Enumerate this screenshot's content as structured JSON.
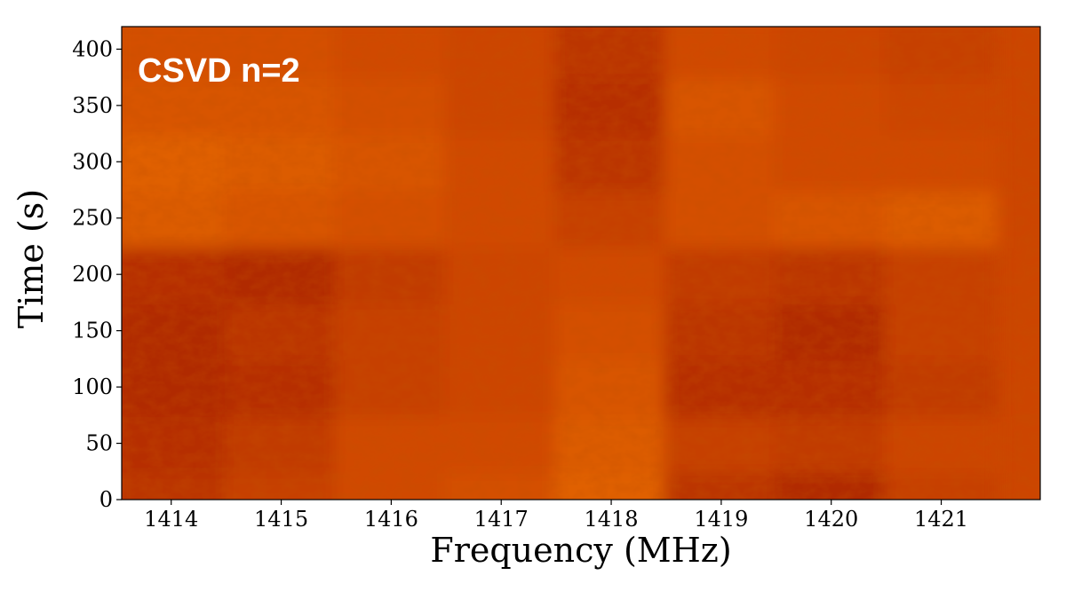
{
  "chart_data": {
    "type": "heatmap",
    "annotation": "CSVD n=2",
    "xlabel": "Frequency (MHz)",
    "ylabel": "Time (s)",
    "xlim": [
      1413.55,
      1421.9
    ],
    "ylim": [
      0,
      420
    ],
    "x_ticks": [
      1414,
      1415,
      1416,
      1417,
      1418,
      1419,
      1420,
      1421
    ],
    "y_ticks": [
      0,
      50,
      100,
      150,
      200,
      250,
      300,
      350,
      400
    ],
    "colormap": [
      "#8f0f00",
      "#b02a00",
      "#cc4500",
      "#e06000",
      "#f07400"
    ],
    "grid": false,
    "legend": "none",
    "rows_time_axis": [
      0,
      50,
      100,
      150,
      200,
      250,
      300,
      350,
      400
    ],
    "cols_freq_axis": [
      1414,
      1415,
      1416,
      1417,
      1418,
      1419,
      1420,
      1421
    ],
    "intensity": [
      [
        0.35,
        0.45,
        0.55,
        0.6,
        0.75,
        0.35,
        0.25,
        0.45
      ],
      [
        0.3,
        0.4,
        0.55,
        0.55,
        0.7,
        0.45,
        0.4,
        0.5
      ],
      [
        0.25,
        0.3,
        0.45,
        0.5,
        0.65,
        0.3,
        0.3,
        0.4
      ],
      [
        0.25,
        0.35,
        0.45,
        0.5,
        0.6,
        0.35,
        0.25,
        0.45
      ],
      [
        0.3,
        0.25,
        0.4,
        0.5,
        0.55,
        0.4,
        0.35,
        0.45
      ],
      [
        0.7,
        0.65,
        0.6,
        0.55,
        0.45,
        0.6,
        0.65,
        0.7
      ],
      [
        0.75,
        0.7,
        0.65,
        0.55,
        0.35,
        0.6,
        0.55,
        0.55
      ],
      [
        0.65,
        0.65,
        0.6,
        0.5,
        0.3,
        0.65,
        0.55,
        0.5
      ],
      [
        0.6,
        0.6,
        0.55,
        0.5,
        0.35,
        0.55,
        0.5,
        0.45
      ]
    ]
  }
}
